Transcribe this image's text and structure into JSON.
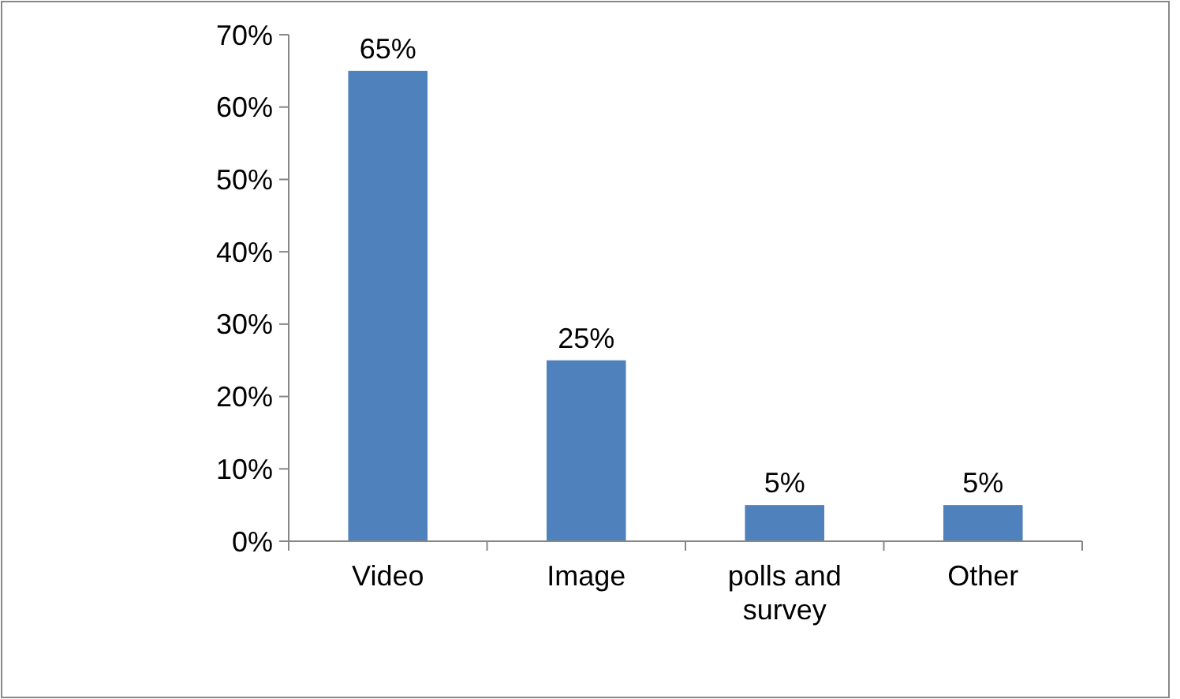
{
  "chart_data": {
    "type": "bar",
    "categories": [
      "Video",
      "Image",
      "polls and survey",
      "Other"
    ],
    "values": [
      65,
      25,
      5,
      5
    ],
    "color": "#4f81bd",
    "value_labels": [
      "65%",
      "25%",
      "5%",
      "5%"
    ],
    "ylim": [
      0,
      70
    ],
    "yticks": [
      {
        "value": 0,
        "label": "0%"
      },
      {
        "value": 10,
        "label": "10%"
      },
      {
        "value": 20,
        "label": "20%"
      },
      {
        "value": 30,
        "label": "30%"
      },
      {
        "value": 40,
        "label": "40%"
      },
      {
        "value": 50,
        "label": "50%"
      },
      {
        "value": 60,
        "label": "60%"
      },
      {
        "value": 70,
        "label": "70%"
      }
    ],
    "grid": false
  }
}
